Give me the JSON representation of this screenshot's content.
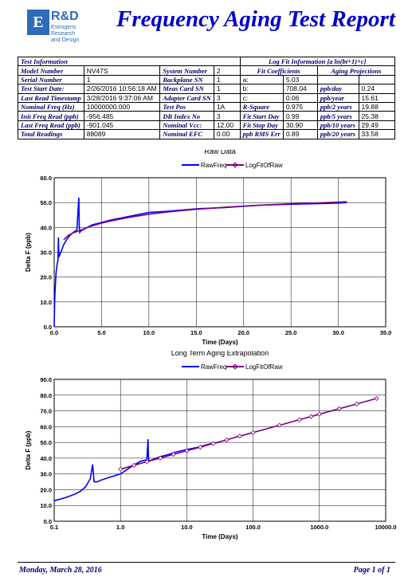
{
  "header": {
    "logo_letter": "E",
    "logo_main": "R&D",
    "logo_sub_1": "Estrogens Research",
    "logo_sub_2": "and Design",
    "title": "Frequency Aging Test Report"
  },
  "info": {
    "test_info_title": "Test Information",
    "fit_title": "Log Fit Information [a ln(bt+1)+c]",
    "fit_coeff_header": "Fit Coefficients",
    "aging_proj_header": "Aging Projections",
    "rows": [
      {
        "l1": "Model Number",
        "v1": "NV47S",
        "l2": "System Number",
        "v2": "2",
        "c1": "",
        "c2": "",
        "p1": "",
        "p2": ""
      },
      {
        "l1": "Serial Number",
        "v1": "1",
        "l2": "Backplane SN",
        "v2": "1",
        "c1": "a:",
        "c2": "5.03",
        "p1": "",
        "p2": ""
      },
      {
        "l1": "Test Start Date:",
        "v1": "2/26/2016 10:56:18 AM",
        "l2": "Meas Card SN",
        "v2": "1",
        "c1": "b:",
        "c2": "708.04",
        "p1": "ppb/day",
        "p2": "0.24"
      },
      {
        "l1": "Last Read Timestamp",
        "v1": "3/28/2016 9:37:06 AM",
        "l2": "Adapter Card SN",
        "v2": "3",
        "c1": "c:",
        "c2": "0.06",
        "p1": "ppb/year",
        "p2": "15.61"
      },
      {
        "l1": "Nominal Freq (Hz)",
        "v1": "10000000.000",
        "l2": "Test Pos",
        "v2": "1A",
        "c1": "R-Square",
        "c2": "0.975",
        "p1": "ppb/2 years",
        "p2": "19.88"
      },
      {
        "l1": "Init Freq Read (ppb)",
        "v1": "-956.485",
        "l2": "DB Index No",
        "v2": "3",
        "c1": "Fit Start Day",
        "c2": "0.99",
        "p1": "ppb/5 years",
        "p2": "25.38"
      },
      {
        "l1": "Last Freq Read (ppb)",
        "v1": "-901.045",
        "l2": "Nominal Vcc:",
        "v2": "12.00",
        "c1": "Fit Stop Day",
        "c2": "30.90",
        "p1": "ppb/10 years",
        "p2": "29.49"
      },
      {
        "l1": "Total Readings",
        "v1": "88089",
        "l2": "Nominal EFC",
        "v2": "0.00",
        "c1": "ppb RMS Err",
        "c2": "0.89",
        "p1": "ppb/20 years",
        "p2": "33.58"
      }
    ]
  },
  "chart_data": [
    {
      "type": "line",
      "title": "Raw Data",
      "xlabel": "Time (Days)",
      "ylabel": "Delta F (ppb)",
      "xlim": [
        0,
        35
      ],
      "ylim": [
        0,
        60
      ],
      "xticks": [
        "0.0",
        "5.0",
        "10.0",
        "15.0",
        "20.0",
        "25.0",
        "30.0",
        "35.0"
      ],
      "yticks": [
        "0.0",
        "10.0",
        "20.0",
        "30.0",
        "40.0",
        "50.0",
        "60.0"
      ],
      "grid": true,
      "legend": "top-center",
      "series": [
        {
          "name": "RawFreq",
          "color": "#0000ff",
          "x": [
            0,
            0.05,
            0.1,
            0.2,
            0.3,
            0.4,
            0.45,
            0.5,
            0.6,
            0.8,
            1.0,
            1.3,
            1.6,
            2.0,
            2.4,
            2.6,
            2.65,
            2.7,
            2.8,
            3.0,
            3.5,
            4.0,
            5.0,
            6.0,
            8.0,
            10.0,
            12.0,
            15.0,
            18.0,
            20.0,
            22.0,
            25.0,
            28.0,
            30.0,
            30.9
          ],
          "y": [
            0,
            10,
            15,
            22,
            25,
            27,
            36,
            28,
            29,
            31,
            33,
            35,
            36.5,
            38,
            39,
            52,
            40,
            38,
            38.5,
            39,
            40,
            41,
            42,
            43,
            44.5,
            46,
            46.5,
            47.5,
            48,
            48.5,
            49,
            49.3,
            49.6,
            49.8,
            50
          ]
        },
        {
          "name": "LogFitOfRaw",
          "color": "#800080",
          "x": [
            0.99,
            1.5,
            2,
            3,
            4,
            5,
            6,
            8,
            10,
            12,
            15,
            18,
            20,
            22,
            25,
            28,
            30,
            30.9
          ],
          "y": [
            35,
            36.8,
            37.8,
            39.2,
            40.6,
            41.7,
            42.6,
            44.1,
            45.3,
            46.2,
            47.3,
            48.1,
            48.6,
            49,
            49.5,
            49.9,
            50.2,
            50.3
          ]
        }
      ]
    },
    {
      "type": "line",
      "title": "Long Term Aging Extrapolation",
      "xlabel": "Time (Days)",
      "ylabel": "Delta F (ppb)",
      "xscale": "log",
      "xlim": [
        0.1,
        10000
      ],
      "ylim": [
        0,
        90
      ],
      "xticks": [
        "0.1",
        "1.0",
        "10.0",
        "100.0",
        "1000.0",
        "10000.0"
      ],
      "yticks": [
        "0.0",
        "10.0",
        "20.0",
        "30.0",
        "40.0",
        "50.0",
        "60.0",
        "70.0",
        "80.0",
        "90.0"
      ],
      "grid": true,
      "legend": "top-center",
      "series": [
        {
          "name": "RawFreq",
          "color": "#0000ff",
          "x": [
            0.1,
            0.15,
            0.2,
            0.25,
            0.3,
            0.35,
            0.38,
            0.4,
            0.45,
            0.5,
            0.7,
            1.0,
            1.5,
            2.0,
            2.5,
            2.6,
            2.65,
            2.7,
            3.0,
            4.0,
            5.0,
            7.0,
            10,
            15,
            20,
            25,
            30.9
          ],
          "y": [
            13,
            15,
            17,
            19,
            22,
            27,
            36,
            25,
            25,
            26,
            28,
            30,
            35,
            38,
            39,
            52,
            40,
            38,
            39,
            41,
            42,
            44,
            45.5,
            47,
            48.5,
            49.5,
            50
          ]
        },
        {
          "name": "LogFitOfRaw",
          "color": "#800080",
          "x": [
            1,
            1.6,
            2.5,
            4,
            6.3,
            10,
            16,
            25,
            40,
            63,
            100,
            250,
            500,
            750,
            1000,
            2000,
            3650,
            7300
          ],
          "y": [
            33,
            35.5,
            37.8,
            40.1,
            42.4,
            44.7,
            47,
            49.3,
            51.6,
            54,
            56.3,
            60.9,
            64.4,
            66.4,
            67.9,
            71.4,
            74.4,
            77.9
          ]
        }
      ]
    }
  ],
  "footer": {
    "date": "Monday, March 28, 2016",
    "page": "Page 1 of 1"
  }
}
